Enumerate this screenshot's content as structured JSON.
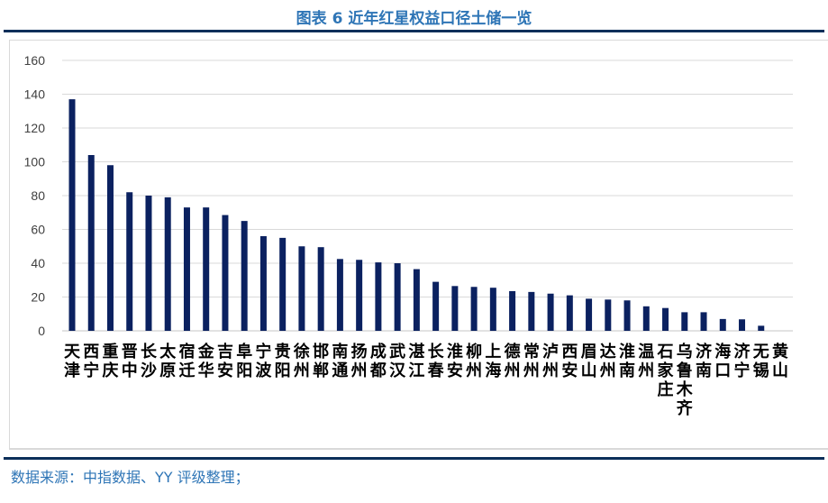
{
  "title": "图表 6 近年红星权益口径土储一览",
  "source": "数据来源：中指数据、YY 评级整理；",
  "colors": {
    "bar": "#0b2160",
    "title": "#2e75b6",
    "rule": "#0b2f5a",
    "grid": "#d9d9d9"
  },
  "chart_data": {
    "type": "bar",
    "title": "",
    "xlabel": "",
    "ylabel": "",
    "ylim": [
      0,
      160
    ],
    "yticks": [
      0,
      20,
      40,
      60,
      80,
      100,
      120,
      140,
      160
    ],
    "grid": true,
    "legend": "none",
    "categories": [
      "天津",
      "西宁",
      "重庆",
      "晋中",
      "长沙",
      "太原",
      "宿迁",
      "金华",
      "吉安",
      "阜阳",
      "宁波",
      "贵阳",
      "徐州",
      "邯郸",
      "南通",
      "扬州",
      "成都",
      "武汉",
      "湛江",
      "长春",
      "淮安",
      "柳州",
      "上海",
      "德州",
      "常州",
      "泸州",
      "西安",
      "眉山",
      "达州",
      "淮南",
      "温州",
      "石家庄",
      "乌鲁木齐",
      "济南",
      "海口",
      "济宁",
      "无锡",
      "黄山"
    ],
    "values": [
      137,
      104,
      98,
      82,
      80,
      79,
      73,
      73,
      68.5,
      65,
      56,
      55,
      50,
      49.5,
      42.5,
      42,
      40.5,
      40,
      36.5,
      29,
      26.5,
      26,
      25.5,
      23.5,
      23,
      22,
      21,
      19,
      18.5,
      18,
      14.5,
      13.5,
      11,
      11,
      7,
      6.8,
      3,
      0
    ]
  }
}
